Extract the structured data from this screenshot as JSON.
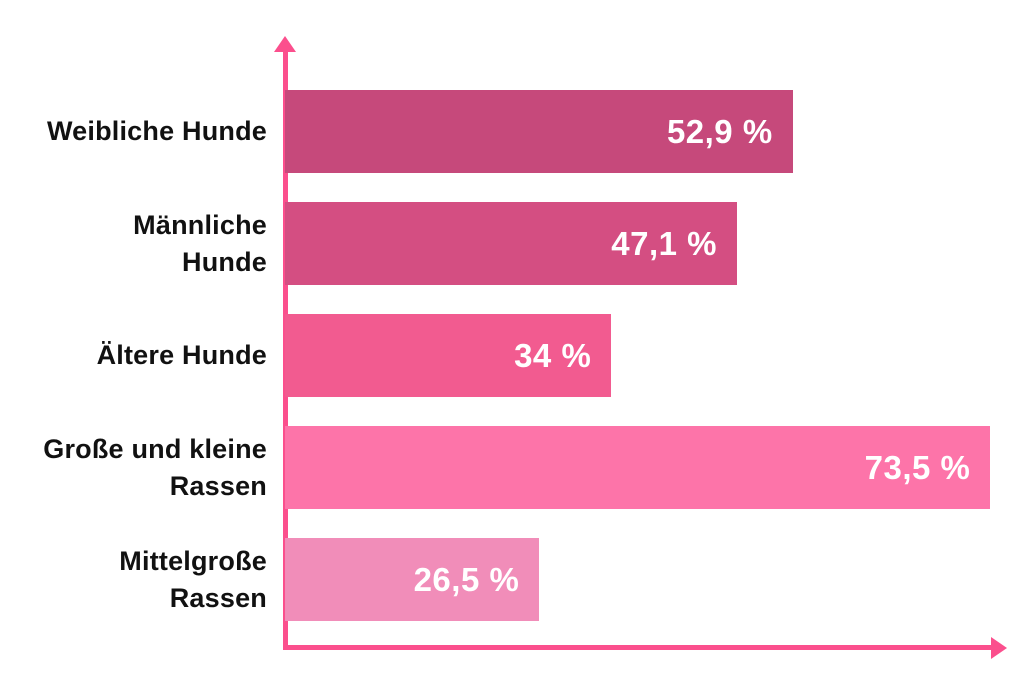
{
  "page": {
    "background": "#ffffff"
  },
  "chart_data": {
    "type": "bar",
    "orientation": "horizontal",
    "title": "",
    "xlabel": "",
    "ylabel": "",
    "xlim": [
      0,
      77
    ],
    "grid": false,
    "legend": false,
    "axis_color": "#fb4f8d",
    "category_label_color": "#111111",
    "value_text_color": "#ffffff",
    "categories": [
      "Weibliche Hunde",
      "Männliche Hunde",
      "Ältere Hunde",
      "Große und kleine Rassen",
      "Mittelgroße Rassen"
    ],
    "values": [
      52.9,
      47.1,
      34,
      73.5,
      26.5
    ],
    "bars": [
      {
        "label_lines": [
          "Weibliche Hunde"
        ],
        "value": 52.9,
        "value_label": "52,9 %",
        "color": "#c6497b"
      },
      {
        "label_lines": [
          "Männliche",
          "Hunde"
        ],
        "value": 47.1,
        "value_label": "47,1 %",
        "color": "#d44e82"
      },
      {
        "label_lines": [
          "Ältere Hunde"
        ],
        "value": 34,
        "value_label": "34 %",
        "color": "#f25b90"
      },
      {
        "label_lines": [
          "Große und kleine",
          "Rassen"
        ],
        "value": 73.5,
        "value_label": "73,5 %",
        "color": "#fd74a9"
      },
      {
        "label_lines": [
          "Mittelgroße",
          "Rassen"
        ],
        "value": 26.5,
        "value_label": "26,5 %",
        "color": "#f18db9"
      }
    ]
  }
}
